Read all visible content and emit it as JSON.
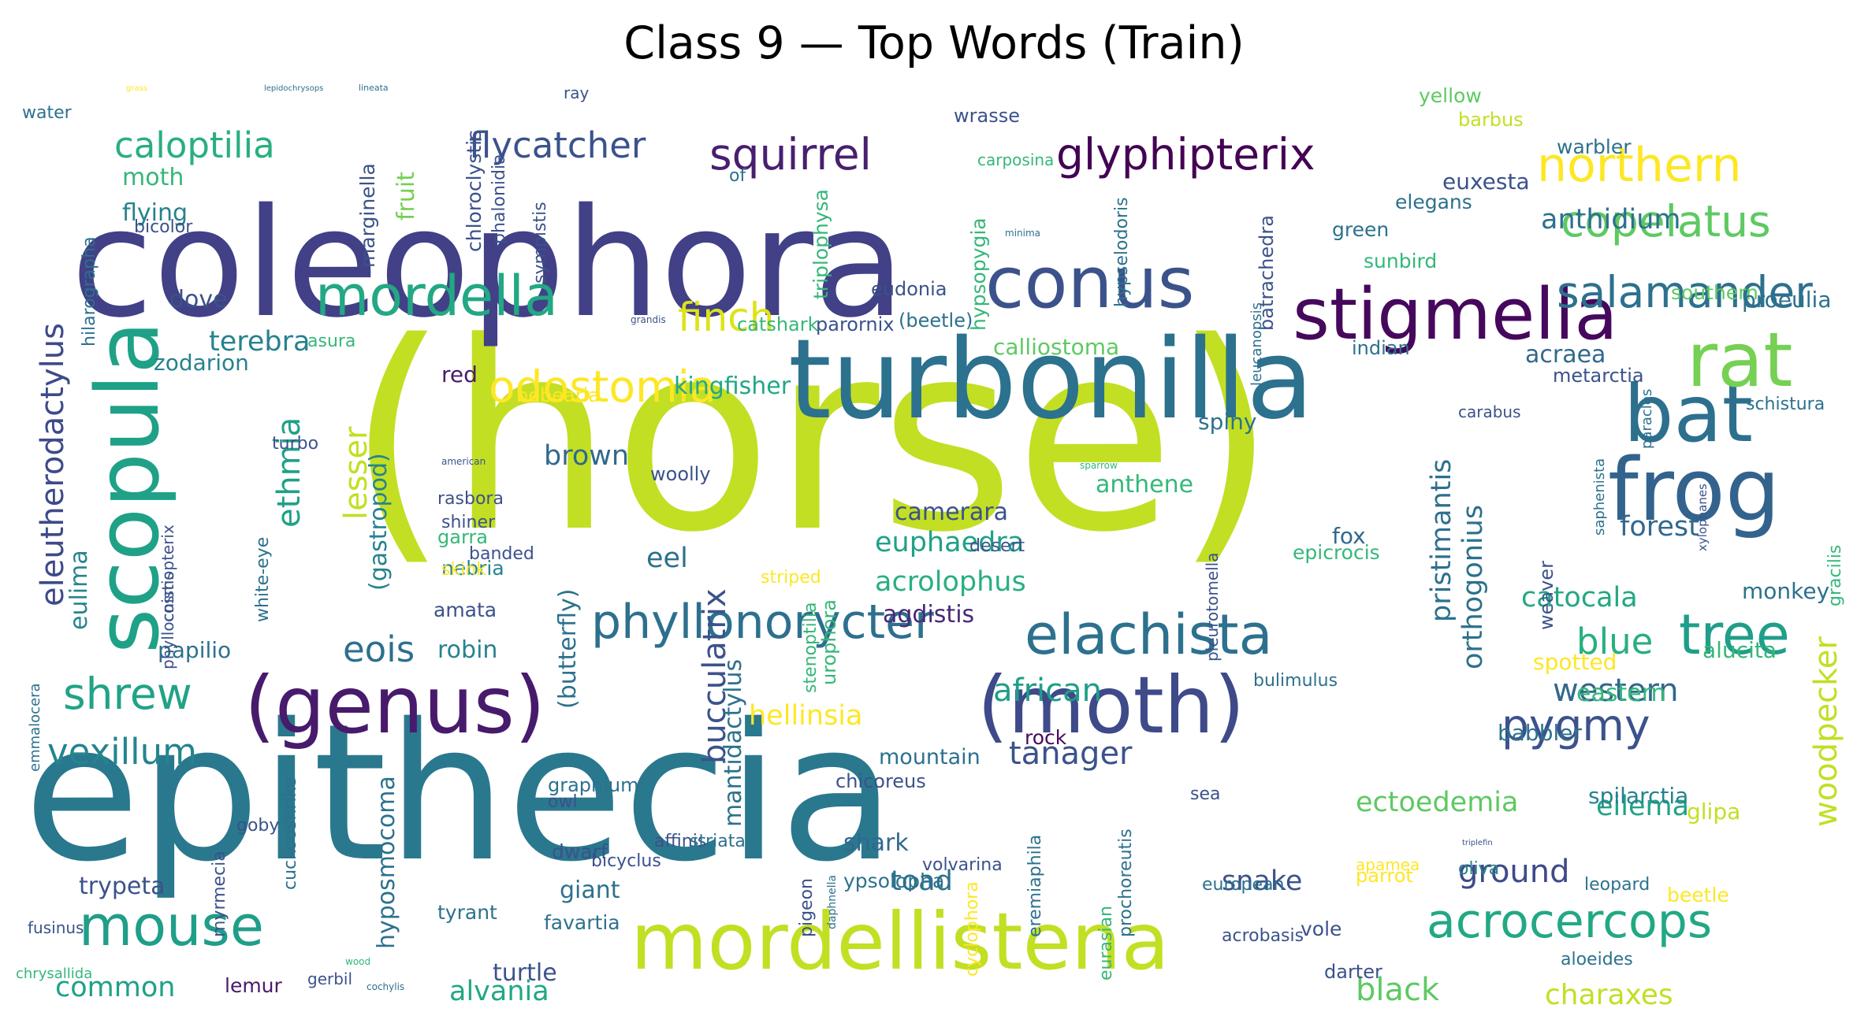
{
  "title": "Class 9 — Top Words (Train)",
  "palette": "viridis",
  "words": [
    {
      "text": "(horse)",
      "color": "#c2df23"
    },
    {
      "text": "epithecia",
      "color": "#2a788e"
    },
    {
      "text": "coleophora",
      "color": "#424086"
    },
    {
      "text": "mordellistena",
      "color": "#c2df23"
    },
    {
      "text": "turbonilla",
      "color": "#2c718e"
    },
    {
      "text": "(genus)",
      "color": "#481a6c"
    },
    {
      "text": "(moth)",
      "color": "#3e4a89"
    },
    {
      "text": "stigmella",
      "color": "#46085c"
    },
    {
      "text": "conus",
      "color": "#3b528b"
    },
    {
      "text": "scopula",
      "color": "#1fa187"
    },
    {
      "text": "elachista",
      "color": "#2c718e"
    },
    {
      "text": "mordella",
      "color": "#22a884"
    },
    {
      "text": "frog",
      "color": "#33638d"
    },
    {
      "text": "bat",
      "color": "#2d708e"
    },
    {
      "text": "rat",
      "color": "#75d054"
    },
    {
      "text": "mouse",
      "color": "#1f9e89"
    },
    {
      "text": "acrocercops",
      "color": "#22a884"
    },
    {
      "text": "phyllonorycter",
      "color": "#2d708e"
    },
    {
      "text": "glyphipterix",
      "color": "#440154"
    },
    {
      "text": "squirrel",
      "color": "#481f70"
    },
    {
      "text": "northern",
      "color": "#fde725"
    },
    {
      "text": "caloptilia",
      "color": "#29af7f"
    },
    {
      "text": "flycatcher",
      "color": "#3b528b"
    },
    {
      "text": "tree",
      "color": "#1f9e89"
    },
    {
      "text": "odostomia",
      "color": "#fde725"
    },
    {
      "text": "copelatus",
      "color": "#5ec962"
    },
    {
      "text": "salamander",
      "color": "#2c718e"
    },
    {
      "text": "shrew",
      "color": "#20a386"
    },
    {
      "text": "pygmy",
      "color": "#3b528b"
    },
    {
      "text": "vexillum",
      "color": "#25848e"
    },
    {
      "text": "finch",
      "color": "#dde318"
    },
    {
      "text": "eleutherodactylus",
      "color": "#3e4a89"
    },
    {
      "text": "ethmia",
      "color": "#1fa187"
    },
    {
      "text": "eois",
      "color": "#2d708e"
    },
    {
      "text": "bucculatrix",
      "color": "#3b528b"
    },
    {
      "text": "western",
      "color": "#31688e"
    },
    {
      "text": "tanager",
      "color": "#3b528b"
    },
    {
      "text": "hellinsia",
      "color": "#fde725"
    },
    {
      "text": "african",
      "color": "#1f9e89"
    },
    {
      "text": "black",
      "color": "#5ec962"
    },
    {
      "text": "charaxes",
      "color": "#c2df23"
    },
    {
      "text": "common",
      "color": "#1fa187"
    },
    {
      "text": "alvania",
      "color": "#22a884"
    },
    {
      "text": "turtle",
      "color": "#3b528b"
    },
    {
      "text": "lemur",
      "color": "#481a6c"
    },
    {
      "text": "ground",
      "color": "#3e4a89"
    },
    {
      "text": "ectoedemia",
      "color": "#5ec962"
    },
    {
      "text": "eilema",
      "color": "#20a386"
    },
    {
      "text": "woodpecker",
      "color": "#c2df23"
    },
    {
      "text": "blue",
      "color": "#29af7f"
    },
    {
      "text": "eastern",
      "color": "#35b779"
    },
    {
      "text": "catocala",
      "color": "#22a884"
    },
    {
      "text": "forest",
      "color": "#31688e"
    },
    {
      "text": "pristimantis",
      "color": "#2d708e"
    },
    {
      "text": "orthogonius",
      "color": "#2c718e"
    },
    {
      "text": "acrolophus",
      "color": "#29af7f"
    },
    {
      "text": "euphaedra",
      "color": "#1fa187"
    },
    {
      "text": "agdistis",
      "color": "#482878"
    },
    {
      "text": "eel",
      "color": "#2d708e"
    },
    {
      "text": "brown",
      "color": "#31688e"
    },
    {
      "text": "lesser",
      "color": "#c2df23"
    },
    {
      "text": "(gastropod)",
      "color": "#26828e"
    },
    {
      "text": "(butterfly)",
      "color": "#2c718e"
    },
    {
      "text": "mantidactylus",
      "color": "#2c718e"
    },
    {
      "text": "shark",
      "color": "#31688e"
    },
    {
      "text": "toad",
      "color": "#2c718e"
    },
    {
      "text": "snake",
      "color": "#3b528b"
    },
    {
      "text": "dwarf",
      "color": "#3b528b"
    },
    {
      "text": "giant",
      "color": "#2c718e"
    },
    {
      "text": "trypeta",
      "color": "#3b528b"
    },
    {
      "text": "hyposmocoma",
      "color": "#2c718e"
    },
    {
      "text": "anthidium",
      "color": "#2c718e"
    },
    {
      "text": "southern",
      "color": "#5ec962"
    },
    {
      "text": "acraea",
      "color": "#31688e"
    },
    {
      "text": "terebra",
      "color": "#26828e"
    },
    {
      "text": "dove",
      "color": "#3b528b"
    },
    {
      "text": "zodarion",
      "color": "#26828e"
    },
    {
      "text": "eulima",
      "color": "#25848e"
    },
    {
      "text": "kingfisher",
      "color": "#22a884"
    },
    {
      "text": "red",
      "color": "#481a6c"
    },
    {
      "text": "calliostoma",
      "color": "#5ec962"
    },
    {
      "text": "camerara",
      "color": "#3b528b"
    },
    {
      "text": "anthene",
      "color": "#35b779"
    },
    {
      "text": "spiny",
      "color": "#2c718e"
    },
    {
      "text": "fox",
      "color": "#31688e"
    },
    {
      "text": "robin",
      "color": "#26828e"
    },
    {
      "text": "papilio",
      "color": "#2c718e"
    },
    {
      "text": "nebria",
      "color": "#25848e"
    },
    {
      "text": "amata",
      "color": "#3b528b"
    },
    {
      "text": "rock",
      "color": "#46085c"
    },
    {
      "text": "mountain",
      "color": "#2c718e"
    },
    {
      "text": "moth",
      "color": "#35b779"
    },
    {
      "text": "flying",
      "color": "#26828e"
    },
    {
      "text": "fruit",
      "color": "#75d054"
    },
    {
      "text": "yellow",
      "color": "#5ec962"
    },
    {
      "text": "euxesta",
      "color": "#3b528b"
    },
    {
      "text": "warbler",
      "color": "#2c718e"
    },
    {
      "text": "green",
      "color": "#2c718e"
    },
    {
      "text": "sunbird",
      "color": "#35b779"
    },
    {
      "text": "elegans",
      "color": "#2c718e"
    },
    {
      "text": "proeulia",
      "color": "#2c718e"
    },
    {
      "text": "barbus",
      "color": "#c2df23"
    },
    {
      "text": "wrasse",
      "color": "#3b528b"
    },
    {
      "text": "eudonia",
      "color": "#3b528b"
    },
    {
      "text": "(beetle)",
      "color": "#2c718e"
    },
    {
      "text": "catshark",
      "color": "#35b779"
    },
    {
      "text": "parornix",
      "color": "#3b528b"
    },
    {
      "text": "bebearia",
      "color": "#fde725"
    },
    {
      "text": "asura",
      "color": "#35b779"
    },
    {
      "text": "indian",
      "color": "#2c718e"
    },
    {
      "text": "metarctia",
      "color": "#3b528b"
    },
    {
      "text": "schistura",
      "color": "#2c718e"
    },
    {
      "text": "carabus",
      "color": "#3b528b"
    },
    {
      "text": "monkey",
      "color": "#2c718e"
    },
    {
      "text": "alucita",
      "color": "#35b779"
    },
    {
      "text": "spotted",
      "color": "#fde725"
    },
    {
      "text": "babbler",
      "color": "#2c718e"
    },
    {
      "text": "spilarctia",
      "color": "#26828e"
    },
    {
      "text": "glipa",
      "color": "#c2df23"
    },
    {
      "text": "oliva",
      "color": "#26828e"
    },
    {
      "text": "leopard",
      "color": "#2c718e"
    },
    {
      "text": "beetle",
      "color": "#fde725"
    },
    {
      "text": "aloeides",
      "color": "#2c718e"
    },
    {
      "text": "darter",
      "color": "#3b528b"
    },
    {
      "text": "vole",
      "color": "#3b528b"
    },
    {
      "text": "acrobasis",
      "color": "#3b528b"
    },
    {
      "text": "european",
      "color": "#2c718e"
    },
    {
      "text": "bulimulus",
      "color": "#2c718e"
    },
    {
      "text": "epicrocis",
      "color": "#35b779"
    },
    {
      "text": "sea",
      "color": "#3b528b"
    },
    {
      "text": "parrot",
      "color": "#fde725"
    },
    {
      "text": "apamea",
      "color": "#fde725"
    },
    {
      "text": "ypsolopha",
      "color": "#2c718e"
    },
    {
      "text": "chicoreus",
      "color": "#3b528b"
    },
    {
      "text": "graphium",
      "color": "#2c718e"
    },
    {
      "text": "favartia",
      "color": "#2c718e"
    },
    {
      "text": "tyrant",
      "color": "#2c718e"
    },
    {
      "text": "goby",
      "color": "#3b528b"
    },
    {
      "text": "owl",
      "color": "#3b528b"
    },
    {
      "text": "bicyclus",
      "color": "#3b528b"
    },
    {
      "text": "affinis",
      "color": "#3b528b"
    },
    {
      "text": "striata",
      "color": "#2c718e"
    },
    {
      "text": "volvarina",
      "color": "#3b528b"
    },
    {
      "text": "desert",
      "color": "#3b528b"
    },
    {
      "text": "striped",
      "color": "#fde725"
    },
    {
      "text": "woolly",
      "color": "#3b528b"
    },
    {
      "text": "garra",
      "color": "#35b779"
    },
    {
      "text": "rasbora",
      "color": "#3b528b"
    },
    {
      "text": "shiner",
      "color": "#3b528b"
    },
    {
      "text": "banded",
      "color": "#3b528b"
    },
    {
      "text": "skink",
      "color": "#fde725"
    },
    {
      "text": "turbo",
      "color": "#3b528b"
    },
    {
      "text": "american",
      "color": "#3b528b"
    },
    {
      "text": "water",
      "color": "#2c718e"
    },
    {
      "text": "grass",
      "color": "#fde725"
    },
    {
      "text": "lepidochrysops",
      "color": "#2c718e"
    },
    {
      "text": "lineata",
      "color": "#2c718e"
    },
    {
      "text": "ray",
      "color": "#3b528b"
    },
    {
      "text": "of",
      "color": "#2c718e"
    },
    {
      "text": "carposina",
      "color": "#35b779"
    },
    {
      "text": "minima",
      "color": "#2c718e"
    },
    {
      "text": "grandis",
      "color": "#3b528b"
    },
    {
      "text": "bicolor",
      "color": "#3b528b"
    },
    {
      "text": "sparrow",
      "color": "#35b779"
    },
    {
      "text": "fusinus",
      "color": "#3b528b"
    },
    {
      "text": "wood",
      "color": "#35b779"
    },
    {
      "text": "gerbil",
      "color": "#3b528b"
    },
    {
      "text": "cochylis",
      "color": "#2c718e"
    },
    {
      "text": "triplefin",
      "color": "#3b528b"
    },
    {
      "text": "marginella",
      "color": "#3b528b"
    },
    {
      "text": "chloroclystis",
      "color": "#3b528b"
    },
    {
      "text": "phalonidia",
      "color": "#3b528b"
    },
    {
      "text": "sympistis",
      "color": "#3b528b"
    },
    {
      "text": "triplophysa",
      "color": "#35b779"
    },
    {
      "text": "hypsopygia",
      "color": "#35b779"
    },
    {
      "text": "hypselodoris",
      "color": "#2c718e"
    },
    {
      "text": "batrachedra",
      "color": "#3b528b"
    },
    {
      "text": "leucanopsis",
      "color": "#2c718e"
    },
    {
      "text": "hilarographa",
      "color": "#2c718e"
    },
    {
      "text": "cosmopterix",
      "color": "#3b528b"
    },
    {
      "text": "phyllocnistis",
      "color": "#3b528b"
    },
    {
      "text": "white-eye",
      "color": "#2c718e"
    },
    {
      "text": "urophora",
      "color": "#35b779"
    },
    {
      "text": "stenoptilia",
      "color": "#35b779"
    },
    {
      "text": "pleurotomella",
      "color": "#3b528b"
    },
    {
      "text": "saphenista",
      "color": "#2c718e"
    },
    {
      "text": "paracles",
      "color": "#2c718e"
    },
    {
      "text": "xylophanes",
      "color": "#3b528b"
    },
    {
      "text": "weaver",
      "color": "#3b528b"
    },
    {
      "text": "gracilis",
      "color": "#35b779"
    },
    {
      "text": "emmalocera",
      "color": "#2c718e"
    },
    {
      "text": "myrmecia",
      "color": "#3b528b"
    },
    {
      "text": "cuckooshrike",
      "color": "#2c718e"
    },
    {
      "text": "pigeon",
      "color": "#3b528b"
    },
    {
      "text": "daphnella",
      "color": "#2c718e"
    },
    {
      "text": "cyclophora",
      "color": "#fde725"
    },
    {
      "text": "eremiaphila",
      "color": "#2c718e"
    },
    {
      "text": "eurasian",
      "color": "#35b779"
    },
    {
      "text": "prochoreutis",
      "color": "#2c718e"
    },
    {
      "text": "chrysallida",
      "color": "#35b779"
    }
  ]
}
